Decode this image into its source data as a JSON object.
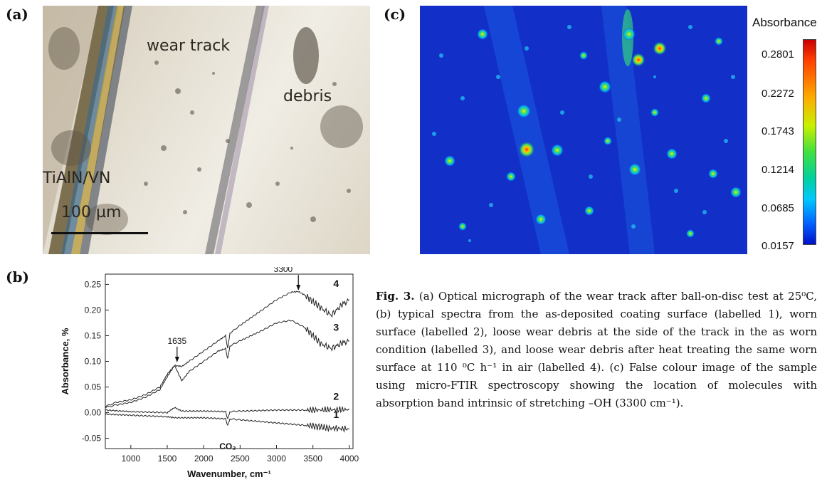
{
  "panel_labels": {
    "a": "(a)",
    "b": "(b)",
    "c": "(c)"
  },
  "panel_a": {
    "labels": {
      "wear_track": "wear track",
      "debris": "debris",
      "coating": "TiAlN/VN",
      "scale": "100 µm"
    }
  },
  "panel_c": {
    "colorbar_title": "Absorbance",
    "colorbar_ticks": [
      "0.2801",
      "0.2272",
      "0.1743",
      "0.1214",
      "0.0685",
      "0.0157"
    ],
    "colormap": [
      "#c80000",
      "#ffaa00",
      "#40e040",
      "#00c8ff",
      "#0010c8"
    ]
  },
  "caption": {
    "lead": "Fig. 3.",
    "text": " (a) Optical micrograph of the wear track after ball-on-disc test at 25⁰C, (b) typical spectra from the as-deposited coating surface (labelled 1), worn surface (labelled 2), loose wear debris at the side of the track in the as worn condition (labelled 3), and loose wear debris after heat treating the same worn surface at 110 ⁰C h⁻¹ in air (labelled 4). (c) False colour image of the sample using micro-FTIR spectroscopy showing the location of molecules with absorption band intrinsic of stretching –OH (3300 cm⁻¹)."
  },
  "chart_data": {
    "type": "line",
    "xlabel": "Wavenumber, cm⁻¹",
    "ylabel": "Absorbance, %",
    "xlim": [
      650,
      4050
    ],
    "ylim": [
      -0.07,
      0.27
    ],
    "xticks": [
      1000,
      1500,
      2000,
      2500,
      3000,
      3500,
      4000
    ],
    "yticks": [
      -0.05,
      0.0,
      0.05,
      0.1,
      0.15,
      0.2,
      0.25
    ],
    "ytick_labels": [
      "-0.05",
      "0.00",
      "0.05",
      "0.10",
      "0.15",
      "0.20",
      "0.25"
    ],
    "series": [
      {
        "name": "1",
        "x": [
          650,
          1000,
          1500,
          1600,
          2000,
          2300,
          2330,
          2360,
          2500,
          3000,
          3500,
          3700,
          4000
        ],
        "y": [
          -0.003,
          -0.005,
          -0.008,
          -0.01,
          -0.01,
          -0.012,
          -0.025,
          -0.012,
          -0.014,
          -0.02,
          -0.026,
          -0.03,
          -0.032
        ]
      },
      {
        "name": "2",
        "x": [
          650,
          1000,
          1500,
          1600,
          1700,
          2000,
          2300,
          2330,
          2360,
          2500,
          3000,
          3500,
          4000
        ],
        "y": [
          0.005,
          0.002,
          0.0,
          0.01,
          0.003,
          0.003,
          0.002,
          -0.012,
          0.002,
          0.003,
          0.005,
          0.005,
          0.006
        ]
      },
      {
        "name": "3",
        "x": [
          650,
          800,
          1000,
          1200,
          1400,
          1500,
          1600,
          1700,
          1800,
          2000,
          2200,
          2300,
          2330,
          2360,
          2500,
          2800,
          3000,
          3200,
          3400,
          3600,
          3750,
          3900,
          4000
        ],
        "y": [
          0.01,
          0.015,
          0.02,
          0.03,
          0.045,
          0.07,
          0.092,
          0.062,
          0.08,
          0.1,
          0.12,
          0.125,
          0.105,
          0.13,
          0.14,
          0.16,
          0.175,
          0.18,
          0.165,
          0.135,
          0.125,
          0.135,
          0.14
        ]
      },
      {
        "name": "4",
        "x": [
          650,
          800,
          1000,
          1200,
          1400,
          1500,
          1600,
          1700,
          1800,
          2000,
          2200,
          2300,
          2330,
          2360,
          2500,
          2800,
          3000,
          3200,
          3300,
          3400,
          3600,
          3750,
          3900,
          4000
        ],
        "y": [
          0.012,
          0.02,
          0.025,
          0.035,
          0.05,
          0.075,
          0.092,
          0.09,
          0.1,
          0.12,
          0.14,
          0.15,
          0.125,
          0.155,
          0.17,
          0.2,
          0.22,
          0.235,
          0.236,
          0.228,
          0.205,
          0.19,
          0.21,
          0.22
        ]
      }
    ],
    "annotations": [
      {
        "text": "1635",
        "x": 1635,
        "arrow_tip_y": 0.098
      },
      {
        "text": "3300",
        "x": 3300,
        "arrow_tip_y": 0.238
      },
      {
        "text": "CO₂",
        "x": 2330,
        "y": -0.06
      }
    ],
    "series_labels": [
      {
        "text": "4",
        "x": 3780,
        "y": 0.245
      },
      {
        "text": "3",
        "x": 3780,
        "y": 0.16
      },
      {
        "text": "2",
        "x": 3780,
        "y": 0.025
      },
      {
        "text": "1",
        "x": 3780,
        "y": -0.01
      }
    ],
    "grid": false
  }
}
